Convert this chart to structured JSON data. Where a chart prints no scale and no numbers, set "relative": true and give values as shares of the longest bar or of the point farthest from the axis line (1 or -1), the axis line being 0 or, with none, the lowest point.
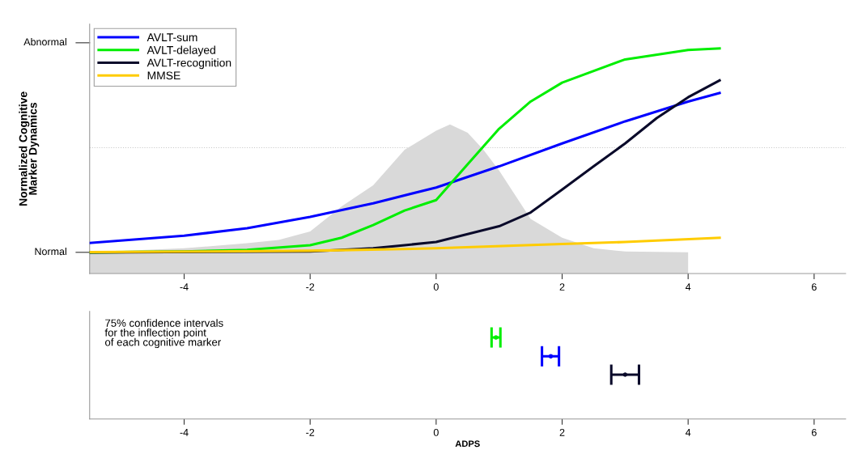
{
  "chart_data": [
    {
      "type": "line",
      "relative": true,
      "ylabel": "Normalized Cognitive\nMarker Dynamics",
      "xlim": [
        -5.5,
        6.5
      ],
      "xticks": [
        -4,
        -2,
        0,
        2,
        4,
        6
      ],
      "legend": "top left",
      "grid": false,
      "annotations": [
        "Normal",
        "Abnormal"
      ],
      "ref_lines": [
        {
          "axis": "y",
          "value": 0.559,
          "label": null,
          "color": "#c8c8c8",
          "line_style": "dotted"
        }
      ],
      "series": [
        {
          "type": "area",
          "color": "#d9d9d9",
          "x": [
            -5.5,
            -4,
            -3,
            -2.5,
            -2,
            -1.5,
            -1,
            -0.5,
            0,
            0.22,
            0.5,
            0.75,
            1,
            1.5,
            2,
            2.5,
            3,
            4
          ],
          "values": [
            0.094,
            0.112,
            0.135,
            0.149,
            0.187,
            0.298,
            0.392,
            0.55,
            0.634,
            0.662,
            0.625,
            0.55,
            0.457,
            0.243,
            0.159,
            0.112,
            0.098,
            0.094
          ]
        },
        {
          "name": "AVLT-sum",
          "color": "#0000ff",
          "x": [
            -5.5,
            -4,
            -3,
            -2,
            -1,
            0,
            1,
            2,
            3,
            4,
            4.5
          ],
          "values": [
            0.136,
            0.168,
            0.201,
            0.252,
            0.312,
            0.382,
            0.476,
            0.578,
            0.676,
            0.764,
            0.802
          ]
        },
        {
          "name": "AVLT-delayed",
          "color": "#00ee00",
          "x": [
            -5.5,
            -4,
            -3,
            -2,
            -1.5,
            -1,
            -0.5,
            0,
            0.5,
            1,
            1.5,
            2,
            3,
            4,
            4.5
          ],
          "values": [
            0.094,
            0.098,
            0.105,
            0.126,
            0.159,
            0.215,
            0.28,
            0.326,
            0.485,
            0.643,
            0.764,
            0.848,
            0.951,
            0.993,
            1
          ]
        },
        {
          "name": "AVLT-recognition",
          "color": "#0a0a2a",
          "x": [
            -5.5,
            -2,
            -1,
            -0.5,
            0,
            1,
            1.5,
            2,
            2.5,
            3,
            3.5,
            4,
            4.5
          ],
          "values": [
            0.094,
            0.098,
            0.112,
            0.126,
            0.14,
            0.21,
            0.271,
            0.373,
            0.476,
            0.578,
            0.69,
            0.783,
            0.858
          ]
        },
        {
          "name": "MMSE",
          "color": "#ffcc00",
          "x": [
            -5.5,
            -2,
            0,
            2,
            3,
            4.5
          ],
          "values": [
            0.095,
            0.101,
            0.112,
            0.131,
            0.14,
            0.159
          ]
        }
      ]
    },
    {
      "type": "scatter",
      "relative": true,
      "xlabel": "ADPS",
      "xlim": [
        -5.5,
        6.5
      ],
      "xticks": [
        -4,
        -2,
        0,
        2,
        4,
        6
      ],
      "grid": false,
      "marker": "circle",
      "annotations": [
        "75% confidence intervals\nfor the inflection point\nof each cognitive marker"
      ],
      "x": [
        0.95,
        1.82,
        3.0
      ],
      "values": [
        1,
        0.77,
        0.545
      ],
      "xerrors": [
        [
          0.88,
          1.02
        ],
        [
          1.68,
          1.95
        ],
        [
          2.78,
          3.22
        ]
      ],
      "colors": [
        "#00ee00",
        "#0000ff",
        "#0a0a2a"
      ]
    }
  ]
}
